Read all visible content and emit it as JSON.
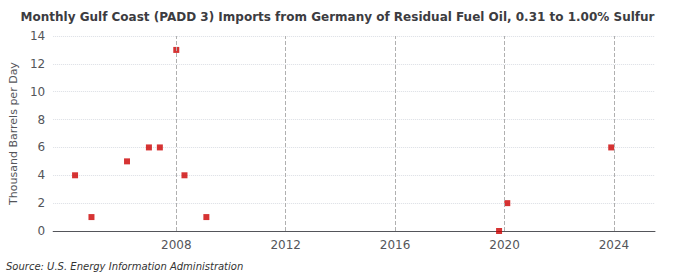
{
  "chart_data": {
    "type": "scatter",
    "title": "Monthly Gulf Coast (PADD 3) Imports from Germany of Residual Fuel Oil, 0.31 to 1.00% Sulfur",
    "y_label": "Thousand Barrels per Day",
    "annotation": "Source: U.S. Energy Information Administration",
    "x": [
      2004.3,
      2004.9,
      2006.2,
      2007.0,
      2007.4,
      2008.0,
      2008.3,
      2009.1,
      2019.8,
      2020.1,
      2023.9
    ],
    "values": [
      4,
      1,
      5,
      6,
      6,
      13,
      4,
      1,
      0,
      2,
      6
    ],
    "color": "#cc0000",
    "marker": "square",
    "xlim": [
      2003.5,
      2025.5
    ],
    "xticks": [
      2008,
      2012,
      2016,
      2020,
      2024
    ],
    "ylim": [
      0,
      14
    ],
    "yticks": [
      0,
      2,
      4,
      6,
      8,
      10,
      12,
      14
    ],
    "grid": true
  }
}
